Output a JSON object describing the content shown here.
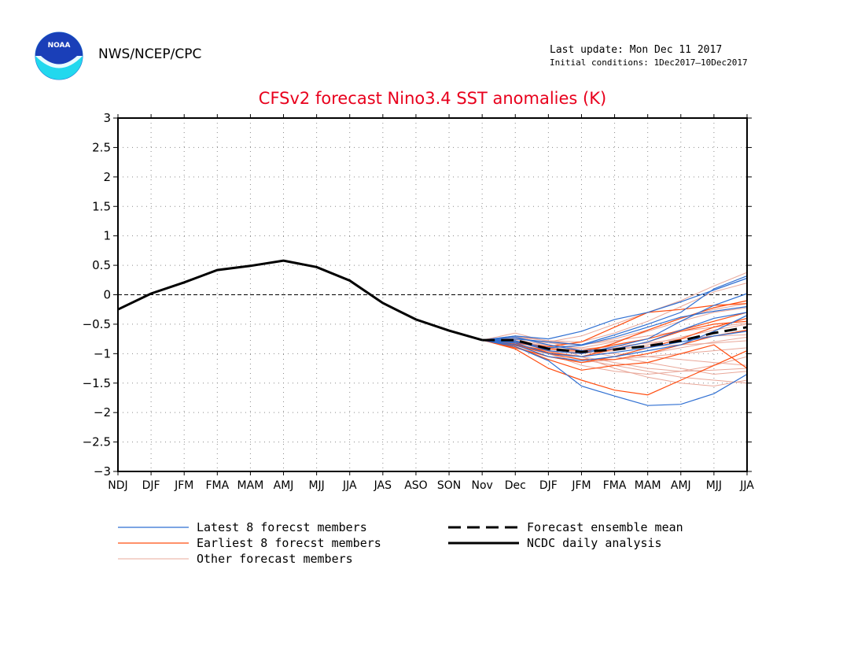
{
  "header": {
    "logo_text": "NOAA",
    "agency": "NWS/NCEP/CPC",
    "last_update": "Last update: Mon Dec 11 2017",
    "initial_conditions": "Initial conditions: 1Dec2017–10Dec2017"
  },
  "chart_data": {
    "type": "line",
    "title": "CFSv2 forecast Nino3.4 SST anomalies (K)",
    "xlabel": "",
    "ylabel": "",
    "categories": [
      "NDJ",
      "DJF",
      "JFM",
      "FMA",
      "MAM",
      "AMJ",
      "MJJ",
      "JJA",
      "JAS",
      "ASO",
      "SON",
      "Nov",
      "Dec",
      "DJF",
      "JFM",
      "FMA",
      "MAM",
      "AMJ",
      "MJJ",
      "JJA"
    ],
    "ylim": [
      -3,
      3
    ],
    "yticks": [
      -3,
      -2.5,
      -2,
      -1.5,
      -1,
      -0.5,
      0,
      0.5,
      1,
      1.5,
      2,
      2.5,
      3
    ],
    "ytick_labels": [
      "−3",
      "−2.5",
      "−2",
      "−1.5",
      "−1",
      "−0.5",
      "0",
      "0.5",
      "1",
      "1.5",
      "2",
      "2.5",
      "3"
    ],
    "grid": true,
    "zero_line": true,
    "colors": {
      "latest": "#2f6fd2",
      "earliest": "#ff4d10",
      "other": "#e9a89a",
      "mean": "#000000",
      "analysis": "#000000",
      "title": "#e8001c"
    },
    "series": [
      {
        "name": "NCDC daily analysis",
        "style": "analysis",
        "values": [
          -0.25,
          0.02,
          0.21,
          0.42,
          0.49,
          0.58,
          0.47,
          0.24,
          -0.14,
          -0.42,
          -0.61,
          -0.77,
          null,
          null,
          null,
          null,
          null,
          null,
          null,
          null
        ]
      },
      {
        "name": "Forecast ensemble mean",
        "style": "mean",
        "values": [
          null,
          null,
          null,
          null,
          null,
          null,
          null,
          null,
          null,
          null,
          null,
          -0.77,
          -0.77,
          -0.92,
          -0.97,
          -0.93,
          -0.87,
          -0.78,
          -0.65,
          -0.55
        ]
      }
    ],
    "members": {
      "start_index": 11,
      "latest": [
        [
          -0.77,
          -0.88,
          -1.12,
          -1.55,
          -1.72,
          -1.88,
          -1.86,
          -1.68,
          -1.35
        ],
        [
          -0.77,
          -0.7,
          -0.75,
          -0.62,
          -0.42,
          -0.3,
          -0.12,
          0.08,
          0.28
        ],
        [
          -0.77,
          -0.78,
          -0.95,
          -1.0,
          -0.88,
          -0.75,
          -0.45,
          -0.18,
          0.02
        ],
        [
          -0.77,
          -0.8,
          -0.9,
          -0.86,
          -0.72,
          -0.55,
          -0.38,
          -0.28,
          -0.2
        ],
        [
          -0.77,
          -0.85,
          -1.05,
          -1.12,
          -1.05,
          -0.95,
          -0.85,
          -0.62,
          -0.35
        ],
        [
          -0.77,
          -0.72,
          -0.85,
          -0.95,
          -0.92,
          -0.8,
          -0.6,
          -0.4,
          -0.3
        ],
        [
          -0.77,
          -0.82,
          -1.0,
          -1.05,
          -0.98,
          -0.9,
          -0.8,
          -0.7,
          -0.62
        ],
        [
          -0.77,
          -0.75,
          -0.8,
          -0.85,
          -0.68,
          -0.5,
          -0.3,
          0.1,
          0.32
        ]
      ],
      "earliest": [
        [
          -0.77,
          -0.92,
          -1.25,
          -1.45,
          -1.62,
          -1.7,
          -1.45,
          -1.2,
          -0.95
        ],
        [
          -0.77,
          -0.88,
          -1.1,
          -1.28,
          -1.2,
          -1.15,
          -1.0,
          -0.85,
          -1.25
        ],
        [
          -0.77,
          -0.85,
          -0.95,
          -1.0,
          -0.82,
          -0.6,
          -0.4,
          -0.22,
          -0.1
        ],
        [
          -0.77,
          -0.82,
          -0.88,
          -0.8,
          -0.55,
          -0.3,
          -0.25,
          -0.18,
          -0.15
        ],
        [
          -0.77,
          -0.9,
          -1.05,
          -1.15,
          -1.05,
          -0.9,
          -0.75,
          -0.55,
          -0.4
        ],
        [
          -0.77,
          -0.8,
          -0.92,
          -0.95,
          -0.85,
          -0.75,
          -0.6,
          -0.45,
          -0.3
        ],
        [
          -0.77,
          -0.86,
          -1.0,
          -1.1,
          -1.1,
          -1.0,
          -0.85,
          -0.7,
          -0.6
        ],
        [
          -0.77,
          -0.84,
          -0.98,
          -1.05,
          -0.92,
          -0.8,
          -0.62,
          -0.5,
          -0.45
        ]
      ],
      "other": [
        [
          -0.77,
          -0.65,
          -0.8,
          -0.95,
          -1.05,
          -1.15,
          -1.25,
          -1.35,
          -1.3
        ],
        [
          -0.77,
          -0.7,
          -0.85,
          -1.05,
          -1.25,
          -1.4,
          -1.5,
          -1.55,
          -1.45
        ],
        [
          -0.77,
          -0.75,
          -0.8,
          -0.7,
          -0.5,
          -0.3,
          -0.1,
          0.15,
          0.38
        ],
        [
          -0.77,
          -0.8,
          -0.95,
          -1.1,
          -1.2,
          -1.3,
          -1.4,
          -1.45,
          -1.5
        ],
        [
          -0.77,
          -0.72,
          -0.78,
          -0.8,
          -0.65,
          -0.45,
          -0.2,
          0.05,
          0.2
        ],
        [
          -0.77,
          -0.85,
          -1.0,
          -1.15,
          -1.1,
          -1.05,
          -1.0,
          -0.95,
          -0.9
        ],
        [
          -0.77,
          -0.78,
          -0.9,
          -0.95,
          -0.9,
          -0.88,
          -0.85,
          -0.82,
          -0.78
        ],
        [
          -0.77,
          -0.82,
          -0.92,
          -0.98,
          -1.0,
          -1.05,
          -1.1,
          -1.15,
          -1.2
        ],
        [
          -0.77,
          -0.74,
          -0.82,
          -0.85,
          -0.78,
          -0.7,
          -0.62,
          -0.55,
          -0.48
        ],
        [
          -0.77,
          -0.88,
          -1.05,
          -1.15,
          -1.1,
          -1.0,
          -0.9,
          -0.8,
          -0.72
        ],
        [
          -0.77,
          -0.76,
          -0.86,
          -0.9,
          -0.8,
          -0.62,
          -0.45,
          -0.3,
          -0.22
        ],
        [
          -0.77,
          -0.84,
          -0.96,
          -1.05,
          -1.15,
          -1.25,
          -1.3,
          -1.28,
          -1.25
        ],
        [
          -0.77,
          -0.8,
          -0.9,
          -1.0,
          -0.95,
          -0.85,
          -0.72,
          -0.6,
          -0.5
        ],
        [
          -0.77,
          -0.7,
          -0.78,
          -0.85,
          -0.75,
          -0.6,
          -0.4,
          -0.25,
          -0.15
        ],
        [
          -0.77,
          -0.86,
          -1.0,
          -1.2,
          -1.3,
          -1.35,
          -1.3,
          -1.2,
          -1.05
        ],
        [
          -0.77,
          -0.78,
          -0.88,
          -0.92,
          -0.88,
          -0.82,
          -0.75,
          -0.7,
          -0.68
        ]
      ]
    },
    "legend": {
      "placement": "bottom",
      "items": [
        {
          "key": "latest",
          "label": "Latest 8 forecst members"
        },
        {
          "key": "earliest",
          "label": "Earliest 8 forecst members"
        },
        {
          "key": "other",
          "label": "Other forecast members"
        },
        {
          "key": "mean",
          "label": "Forecast ensemble mean"
        },
        {
          "key": "analysis",
          "label": "NCDC daily analysis"
        }
      ]
    }
  }
}
